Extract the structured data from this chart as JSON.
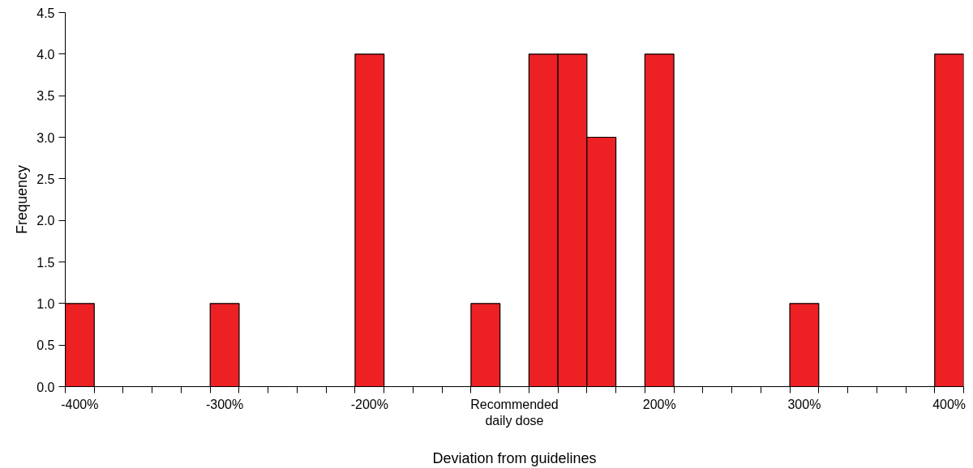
{
  "chart_data": {
    "type": "bar",
    "xlabel": "Deviation from guidelines",
    "ylabel": "Frequency",
    "categories": [
      "-400%",
      null,
      null,
      null,
      null,
      "-300%",
      null,
      null,
      null,
      null,
      "-200%",
      null,
      null,
      null,
      null,
      "Recommended daily dose",
      null,
      null,
      null,
      null,
      "200%",
      null,
      null,
      null,
      null,
      "300%",
      null,
      null,
      null,
      null,
      "400%"
    ],
    "values": [
      1,
      0,
      0,
      0,
      0,
      1,
      0,
      0,
      0,
      0,
      4,
      0,
      0,
      0,
      1,
      0,
      4,
      4,
      3,
      0,
      4,
      0,
      0,
      0,
      0,
      1,
      0,
      0,
      0,
      0,
      4
    ],
    "color": "#ed2024",
    "ylim": [
      0,
      4.5
    ],
    "yticks": [
      {
        "value": 0,
        "label": "0.0"
      },
      {
        "value": 0.5,
        "label": "0.5"
      },
      {
        "value": 1,
        "label": "1.0"
      },
      {
        "value": 1.5,
        "label": "1.5"
      },
      {
        "value": 2,
        "label": "2.0"
      },
      {
        "value": 2.5,
        "label": "2.5"
      },
      {
        "value": 3,
        "label": "3.0"
      },
      {
        "value": 3.5,
        "label": "3.5"
      },
      {
        "value": 4,
        "label": "4.0"
      },
      {
        "value": 4.5,
        "label": "4.5"
      }
    ],
    "grid": false
  }
}
